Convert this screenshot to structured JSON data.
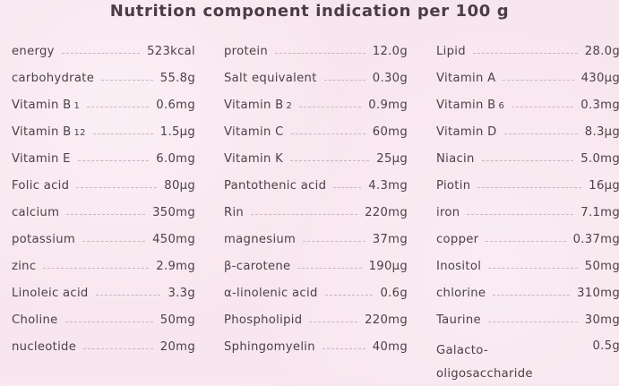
{
  "title": "Nutrition component indication per 100 g",
  "columns": [
    [
      {
        "name": "energy",
        "sub": "",
        "value": "523kcal"
      },
      {
        "name": "carbohydrate",
        "sub": "",
        "value": "55.8g"
      },
      {
        "name": "Vitamin B",
        "sub": "1",
        "value": "0.6mg"
      },
      {
        "name": "Vitamin B",
        "sub": "12",
        "value": "1.5μg"
      },
      {
        "name": "Vitamin E",
        "sub": "",
        "value": "6.0mg"
      },
      {
        "name": "Folic acid",
        "sub": "",
        "value": "80μg"
      },
      {
        "name": "calcium",
        "sub": "",
        "value": "350mg"
      },
      {
        "name": "potassium",
        "sub": "",
        "value": "450mg"
      },
      {
        "name": "zinc",
        "sub": "",
        "value": "2.9mg"
      },
      {
        "name": "Linoleic acid",
        "sub": "",
        "value": "3.3g"
      },
      {
        "name": "Choline",
        "sub": "",
        "value": "50mg"
      },
      {
        "name": "nucleotide",
        "sub": "",
        "value": "20mg"
      }
    ],
    [
      {
        "name": "protein",
        "sub": "",
        "value": "12.0g"
      },
      {
        "name": "Salt equivalent",
        "sub": "",
        "value": "0.30g"
      },
      {
        "name": "Vitamin B",
        "sub": "2",
        "value": "0.9mg"
      },
      {
        "name": "Vitamin C",
        "sub": "",
        "value": "60mg"
      },
      {
        "name": "Vitamin K",
        "sub": "",
        "value": "25μg"
      },
      {
        "name": "Pantothenic acid",
        "sub": "",
        "value": "4.3mg"
      },
      {
        "name": "Rin",
        "sub": "",
        "value": "220mg"
      },
      {
        "name": "magnesium",
        "sub": "",
        "value": "37mg"
      },
      {
        "name": "β-carotene",
        "sub": "",
        "value": "190μg"
      },
      {
        "name": "α-linolenic acid",
        "sub": "",
        "value": "0.6g"
      },
      {
        "name": "Phospholipid",
        "sub": "",
        "value": "220mg"
      },
      {
        "name": "Sphingomyelin",
        "sub": "",
        "value": "40mg"
      }
    ],
    [
      {
        "name": "Lipid",
        "sub": "",
        "value": "28.0g"
      },
      {
        "name": "Vitamin A",
        "sub": "",
        "value": "430μg"
      },
      {
        "name": "Vitamin B",
        "sub": "6",
        "value": "0.3mg"
      },
      {
        "name": "Vitamin D",
        "sub": "",
        "value": "8.3μg"
      },
      {
        "name": "Niacin",
        "sub": "",
        "value": "5.0mg"
      },
      {
        "name": "Piotin",
        "sub": "",
        "value": "16μg"
      },
      {
        "name": "iron",
        "sub": "",
        "value": "7.1mg"
      },
      {
        "name": "copper",
        "sub": "",
        "value": "0.37mg"
      },
      {
        "name": "Inositol",
        "sub": "",
        "value": "50mg"
      },
      {
        "name": "chlorine",
        "sub": "",
        "value": "310mg"
      },
      {
        "name": "Taurine",
        "sub": "",
        "value": "30mg"
      },
      {
        "name": "Galacto-oligosaccharide",
        "sub": "",
        "value": "0.5g"
      }
    ]
  ]
}
